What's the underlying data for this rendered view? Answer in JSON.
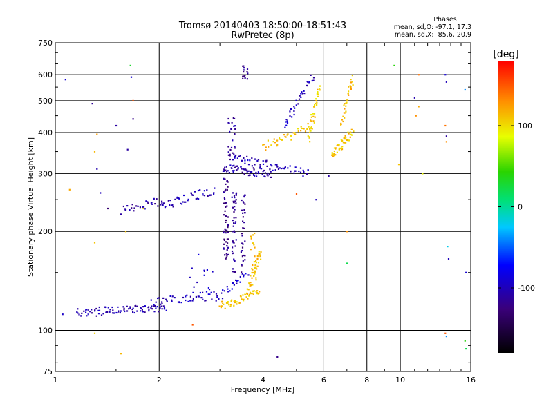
{
  "chart_data": {
    "type": "scatter",
    "title": "Tromsø 20140403 18:50:00-18:51:43",
    "subtitle": "RwPretec (8p)",
    "stats": {
      "heading": "Phases",
      "line1": "mean, sd,O: -97.1, 17.3",
      "line2": "mean, sd,X:  85.6, 20.9"
    },
    "xlabel": "Frequency [MHz]",
    "ylabel": "Stationary phase Virtual Height [km]",
    "xscale": "log",
    "yscale": "log",
    "xlim": [
      1,
      16
    ],
    "ylim": [
      75,
      750
    ],
    "xticks": [
      1,
      2,
      4,
      6,
      8,
      10,
      16
    ],
    "xtick_labels": [
      "1",
      "2",
      "4",
      "6",
      "8",
      "10",
      "16"
    ],
    "yticks": [
      75,
      100,
      200,
      300,
      400,
      500,
      600,
      750
    ],
    "ytick_labels": [
      "75",
      "100",
      "200",
      "300",
      "400",
      "500",
      "600",
      "750"
    ],
    "grid": true,
    "colorbar": {
      "label": "[deg]",
      "range": [
        -180,
        180
      ],
      "ticks": [
        100,
        0,
        -100
      ],
      "tick_labels": [
        "100",
        "0",
        "-100"
      ]
    },
    "traces": [
      {
        "x0": 1.15,
        "x1": 2.1,
        "h0": 113,
        "h1": 118,
        "phase": -105,
        "n": 90
      },
      {
        "x0": 1.9,
        "x1": 2.95,
        "h0": 122,
        "h1": 128,
        "phase": -100,
        "n": 45
      },
      {
        "x0": 2.95,
        "x1": 3.6,
        "h0": 126,
        "h1": 150,
        "phase": -92,
        "n": 25
      },
      {
        "x0": 3.0,
        "x1": 3.9,
        "h0": 118,
        "h1": 130,
        "phase": 108,
        "n": 55
      },
      {
        "x0": 3.6,
        "x1": 3.95,
        "h0": 130,
        "h1": 175,
        "phase": 110,
        "n": 35
      },
      {
        "x0": 1.55,
        "x1": 2.05,
        "h0": 232,
        "h1": 248,
        "phase": -110,
        "n": 30
      },
      {
        "x0": 2.05,
        "x1": 2.9,
        "h0": 240,
        "h1": 268,
        "phase": -102,
        "n": 45
      },
      {
        "x0": 3.05,
        "x1": 4.2,
        "h0": 312,
        "h1": 300,
        "phase": -108,
        "n": 70
      },
      {
        "x0": 3.3,
        "x1": 5.4,
        "h0": 335,
        "h1": 300,
        "phase": -100,
        "n": 60
      },
      {
        "x0": 4.0,
        "x1": 5.6,
        "h0": 360,
        "h1": 420,
        "phase": 112,
        "n": 40
      },
      {
        "x0": 5.4,
        "x1": 5.85,
        "h0": 380,
        "h1": 560,
        "phase": 105,
        "n": 35
      },
      {
        "x0": 6.3,
        "x1": 7.25,
        "h0": 340,
        "h1": 400,
        "phase": 108,
        "n": 50
      },
      {
        "x0": 6.7,
        "x1": 7.3,
        "h0": 420,
        "h1": 590,
        "phase": 115,
        "n": 30
      },
      {
        "x0": 4.6,
        "x1": 5.6,
        "h0": 420,
        "h1": 600,
        "phase": -100,
        "n": 35
      }
    ],
    "clusters": [
      {
        "xc": 3.12,
        "xs": 0.05,
        "h0": 165,
        "h1": 290,
        "phase": -120,
        "n": 55
      },
      {
        "xc": 3.3,
        "xs": 0.05,
        "h0": 150,
        "h1": 275,
        "phase": -115,
        "n": 45
      },
      {
        "xc": 3.5,
        "xs": 0.05,
        "h0": 150,
        "h1": 260,
        "phase": -118,
        "n": 35
      },
      {
        "xc": 3.75,
        "xs": 0.07,
        "h0": 140,
        "h1": 200,
        "phase": 112,
        "n": 20
      },
      {
        "xc": 3.25,
        "xs": 0.08,
        "h0": 330,
        "h1": 450,
        "phase": -110,
        "n": 30
      },
      {
        "xc": 3.55,
        "xs": 0.06,
        "h0": 570,
        "h1": 640,
        "phase": -120,
        "n": 15
      },
      {
        "xc": 2.7,
        "xs": 0.25,
        "h0": 130,
        "h1": 160,
        "phase": -95,
        "n": 14
      }
    ],
    "scattered_points": [
      {
        "x": 1.05,
        "y": 112,
        "phase": -95
      },
      {
        "x": 1.07,
        "y": 580,
        "phase": -90
      },
      {
        "x": 1.1,
        "y": 268,
        "phase": 120
      },
      {
        "x": 1.28,
        "y": 490,
        "phase": -115
      },
      {
        "x": 1.3,
        "y": 350,
        "phase": 115
      },
      {
        "x": 1.3,
        "y": 185,
        "phase": 110
      },
      {
        "x": 1.32,
        "y": 395,
        "phase": 125
      },
      {
        "x": 1.35,
        "y": 262,
        "phase": -100
      },
      {
        "x": 1.32,
        "y": 310,
        "phase": -105
      },
      {
        "x": 1.42,
        "y": 235,
        "phase": -130
      },
      {
        "x": 1.5,
        "y": 420,
        "phase": -110
      },
      {
        "x": 1.6,
        "y": 200,
        "phase": 110
      },
      {
        "x": 1.62,
        "y": 355,
        "phase": -110
      },
      {
        "x": 1.55,
        "y": 85,
        "phase": 115
      },
      {
        "x": 1.65,
        "y": 640,
        "phase": 30
      },
      {
        "x": 1.66,
        "y": 590,
        "phase": -90
      },
      {
        "x": 1.68,
        "y": 500,
        "phase": 150
      },
      {
        "x": 1.68,
        "y": 440,
        "phase": -120
      },
      {
        "x": 1.3,
        "y": 98,
        "phase": 105
      },
      {
        "x": 1.8,
        "y": 235,
        "phase": 100
      },
      {
        "x": 2.5,
        "y": 104,
        "phase": 150
      },
      {
        "x": 2.6,
        "y": 170,
        "phase": -85
      },
      {
        "x": 4.4,
        "y": 83,
        "phase": -120
      },
      {
        "x": 5.0,
        "y": 260,
        "phase": 150
      },
      {
        "x": 5.7,
        "y": 250,
        "phase": -100
      },
      {
        "x": 6.2,
        "y": 295,
        "phase": -110
      },
      {
        "x": 7.0,
        "y": 200,
        "phase": 130
      },
      {
        "x": 7.0,
        "y": 160,
        "phase": 20
      },
      {
        "x": 9.6,
        "y": 640,
        "phase": 40
      },
      {
        "x": 9.9,
        "y": 320,
        "phase": 110
      },
      {
        "x": 11.0,
        "y": 510,
        "phase": -105
      },
      {
        "x": 11.1,
        "y": 450,
        "phase": 130
      },
      {
        "x": 11.3,
        "y": 600,
        "phase": 140
      },
      {
        "x": 11.3,
        "y": 480,
        "phase": 120
      },
      {
        "x": 11.6,
        "y": 300,
        "phase": 90
      },
      {
        "x": 13.5,
        "y": 600,
        "phase": -90
      },
      {
        "x": 13.6,
        "y": 570,
        "phase": -100
      },
      {
        "x": 13.5,
        "y": 420,
        "phase": 140
      },
      {
        "x": 13.6,
        "y": 390,
        "phase": -110
      },
      {
        "x": 13.6,
        "y": 375,
        "phase": 130
      },
      {
        "x": 13.7,
        "y": 180,
        "phase": -20
      },
      {
        "x": 13.8,
        "y": 165,
        "phase": -100
      },
      {
        "x": 13.5,
        "y": 98,
        "phase": 150
      },
      {
        "x": 13.6,
        "y": 96,
        "phase": -40
      },
      {
        "x": 15.4,
        "y": 540,
        "phase": -40
      },
      {
        "x": 15.5,
        "y": 150,
        "phase": -90
      },
      {
        "x": 15.4,
        "y": 93,
        "phase": 40
      },
      {
        "x": 15.5,
        "y": 88,
        "phase": 20
      }
    ]
  }
}
